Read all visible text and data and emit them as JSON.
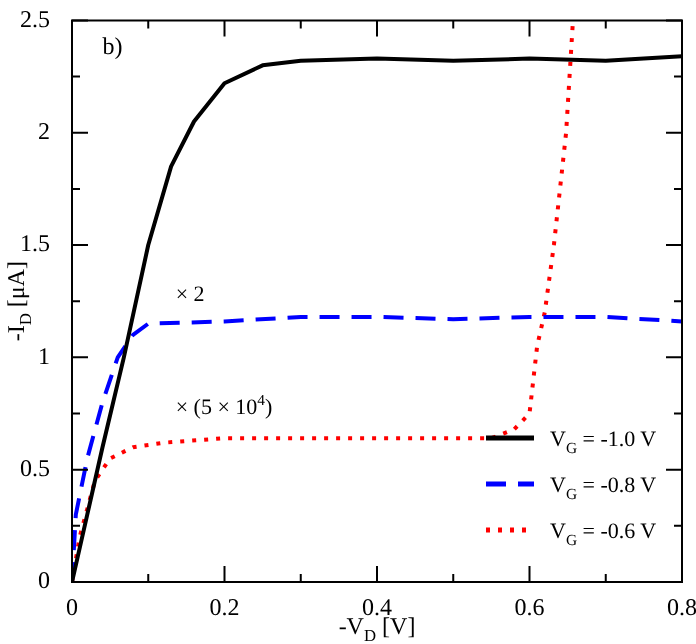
{
  "chart_data": {
    "type": "line",
    "xlabel": "-V$_{D}$ [V]",
    "ylabel": "-I$_{D}$ [μA]",
    "xlim": [
      0,
      0.8
    ],
    "ylim": [
      0,
      2.5
    ],
    "xticks": [
      0,
      {
        "value": 0.1,
        "label": null
      },
      0.2,
      {
        "value": 0.3,
        "label": null
      },
      0.4,
      {
        "value": 0.5,
        "label": null
      },
      0.6,
      {
        "value": 0.7,
        "label": null
      },
      0.8
    ],
    "yticks": [
      0,
      {
        "value": 0.25,
        "label": null
      },
      0.5,
      {
        "value": 0.75,
        "label": null
      },
      1,
      {
        "value": 1.25,
        "label": null
      },
      1.5,
      {
        "value": 1.75,
        "label": null
      },
      2,
      {
        "value": 2.25,
        "label": null
      },
      2.5
    ],
    "grid": false,
    "legend": "bottom right",
    "marker": "none",
    "annotations": [
      "b)",
      "× 2",
      "× (5 × 10$^{4}$)"
    ],
    "series": [
      {
        "name": "V$_{G}$ = -1.0 V",
        "color": "#000000",
        "line_style": "solid",
        "x": [
          0,
          0.02,
          0.04,
          0.068,
          0.1,
          0.13,
          0.16,
          0.2,
          0.25,
          0.3,
          0.4,
          0.5,
          0.6,
          0.7,
          0.8
        ],
        "values": [
          0,
          0.3,
          0.6,
          1.0,
          1.5,
          1.85,
          2.05,
          2.22,
          2.3,
          2.32,
          2.33,
          2.32,
          2.33,
          2.32,
          2.34
        ]
      },
      {
        "name": "V$_{G}$ = -0.8 V",
        "color": "#0000ff",
        "line_style": "dashed",
        "x": [
          0,
          0.005,
          0.02,
          0.04,
          0.06,
          0.08,
          0.1,
          0.2,
          0.3,
          0.4,
          0.5,
          0.6,
          0.7,
          0.8
        ],
        "values": [
          0,
          0.3,
          0.55,
          0.8,
          1.0,
          1.1,
          1.15,
          1.16,
          1.18,
          1.18,
          1.17,
          1.18,
          1.18,
          1.16
        ]
      },
      {
        "name": "V$_{G}$ = -0.6 V",
        "color": "#ff0000",
        "line_style": "dotted",
        "x": [
          0,
          0.01,
          0.03,
          0.05,
          0.08,
          0.12,
          0.2,
          0.3,
          0.4,
          0.5,
          0.55,
          0.58,
          0.6,
          0.61,
          0.62,
          0.632,
          0.648,
          0.657
        ],
        "values": [
          0,
          0.2,
          0.45,
          0.55,
          0.6,
          0.62,
          0.64,
          0.64,
          0.64,
          0.64,
          0.64,
          0.68,
          0.75,
          1.05,
          1.2,
          1.5,
          2.0,
          2.5
        ]
      }
    ]
  }
}
